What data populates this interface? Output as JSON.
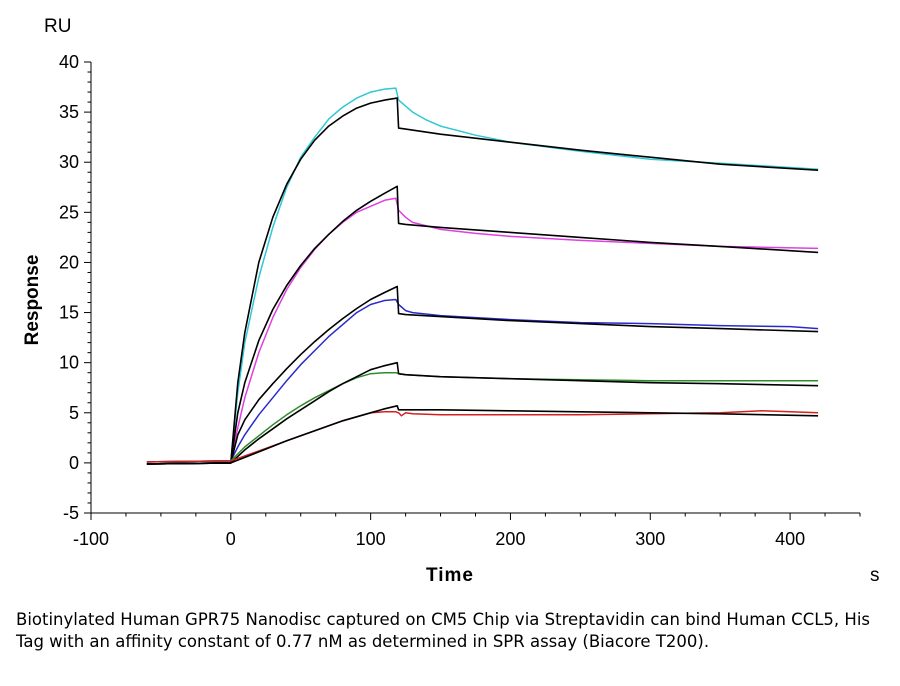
{
  "chart_data": {
    "type": "line",
    "xlabel": "Time",
    "ylabel": "Response",
    "y_unit": "RU",
    "x_unit": "s",
    "xlim": [
      -100,
      450
    ],
    "ylim": [
      -5,
      40
    ],
    "x_ticks": [
      -100,
      0,
      100,
      200,
      300,
      400
    ],
    "y_ticks": [
      -5,
      0,
      5,
      10,
      15,
      20,
      25,
      30,
      35,
      40
    ],
    "grid": false,
    "legend": "none",
    "series": [
      {
        "color": "#2ec8d6",
        "x": [
          -60,
          0,
          5,
          10,
          20,
          30,
          40,
          50,
          60,
          70,
          80,
          90,
          100,
          110,
          118,
          120,
          125,
          130,
          140,
          150,
          175,
          200,
          250,
          300,
          350,
          420
        ],
        "y": [
          0.1,
          0.2,
          7,
          12,
          18.5,
          23.5,
          27.5,
          30.5,
          32.5,
          34.3,
          35.5,
          36.4,
          37.0,
          37.3,
          37.4,
          36.2,
          35.6,
          35.0,
          34.2,
          33.6,
          32.7,
          32.0,
          31.1,
          30.3,
          29.9,
          29.3
        ]
      },
      {
        "color": "#000000",
        "x": [
          -60,
          0,
          5,
          10,
          20,
          30,
          40,
          50,
          60,
          70,
          80,
          90,
          100,
          110,
          119,
          120,
          125,
          150,
          200,
          250,
          300,
          350,
          420
        ],
        "y": [
          -0.1,
          0.0,
          8,
          13,
          20,
          24.5,
          27.8,
          30.3,
          32.2,
          33.6,
          34.6,
          35.4,
          35.9,
          36.2,
          36.4,
          33.4,
          33.3,
          32.8,
          32.0,
          31.2,
          30.5,
          29.8,
          29.2
        ]
      },
      {
        "color": "#e040e0",
        "x": [
          -60,
          0,
          5,
          10,
          20,
          30,
          40,
          50,
          60,
          70,
          80,
          90,
          100,
          110,
          118,
          120,
          125,
          130,
          150,
          175,
          200,
          250,
          300,
          350,
          420
        ],
        "y": [
          0.1,
          0.2,
          3.5,
          6.5,
          11,
          14.5,
          17.3,
          19.5,
          21.3,
          22.8,
          24,
          25,
          25.6,
          26.2,
          26.4,
          25.2,
          24.5,
          24,
          23.3,
          22.9,
          22.6,
          22.2,
          21.9,
          21.6,
          21.4
        ]
      },
      {
        "color": "#000000",
        "x": [
          -60,
          0,
          5,
          10,
          20,
          30,
          40,
          50,
          60,
          70,
          80,
          90,
          100,
          110,
          119,
          120,
          125,
          150,
          200,
          250,
          300,
          350,
          420
        ],
        "y": [
          -0.1,
          0.0,
          5,
          8,
          12.2,
          15.3,
          17.7,
          19.7,
          21.4,
          22.8,
          24.1,
          25.2,
          26.1,
          26.9,
          27.6,
          23.9,
          23.8,
          23.5,
          23.0,
          22.5,
          22.0,
          21.6,
          21.0
        ]
      },
      {
        "color": "#2a2acc",
        "x": [
          -60,
          0,
          5,
          10,
          20,
          30,
          40,
          50,
          60,
          70,
          80,
          90,
          100,
          110,
          118,
          120,
          125,
          130,
          150,
          175,
          200,
          250,
          300,
          350,
          400,
          420
        ],
        "y": [
          0.1,
          0.2,
          1.6,
          2.8,
          4.8,
          6.5,
          8.2,
          9.8,
          11.2,
          12.6,
          13.8,
          15,
          15.8,
          16.2,
          16.3,
          15.8,
          15.2,
          15,
          14.7,
          14.5,
          14.3,
          14,
          13.9,
          13.7,
          13.6,
          13.4
        ]
      },
      {
        "color": "#000000",
        "x": [
          -60,
          0,
          5,
          10,
          20,
          30,
          40,
          50,
          60,
          70,
          80,
          90,
          100,
          110,
          119,
          120,
          125,
          150,
          200,
          250,
          300,
          350,
          420
        ],
        "y": [
          -0.1,
          0.0,
          2.8,
          4.3,
          6.3,
          7.9,
          9.4,
          10.8,
          12.1,
          13.3,
          14.4,
          15.4,
          16.3,
          17.0,
          17.6,
          14.9,
          14.8,
          14.6,
          14.2,
          13.9,
          13.6,
          13.4,
          13.1
        ]
      },
      {
        "color": "#2e8b2e",
        "x": [
          -60,
          0,
          10,
          20,
          30,
          40,
          50,
          60,
          70,
          80,
          90,
          100,
          110,
          118,
          120,
          125,
          150,
          200,
          250,
          300,
          350,
          420
        ],
        "y": [
          0.1,
          0.2,
          1.6,
          2.7,
          3.8,
          4.8,
          5.7,
          6.5,
          7.2,
          7.9,
          8.5,
          8.9,
          9.0,
          9.0,
          8.9,
          8.8,
          8.6,
          8.4,
          8.3,
          8.2,
          8.2,
          8.2
        ]
      },
      {
        "color": "#000000",
        "x": [
          -60,
          0,
          10,
          20,
          30,
          40,
          50,
          60,
          70,
          80,
          90,
          100,
          110,
          119,
          120,
          125,
          150,
          200,
          250,
          300,
          350,
          420
        ],
        "y": [
          -0.1,
          0.0,
          1.3,
          2.4,
          3.4,
          4.4,
          5.3,
          6.2,
          7.1,
          7.9,
          8.6,
          9.3,
          9.7,
          10.0,
          8.9,
          8.8,
          8.6,
          8.4,
          8.2,
          8.0,
          7.9,
          7.7
        ]
      },
      {
        "color": "#d42020",
        "x": [
          -60,
          0,
          20,
          40,
          60,
          80,
          100,
          110,
          118,
          120,
          122,
          125,
          130,
          150,
          200,
          250,
          300,
          350,
          380,
          420
        ],
        "y": [
          0.1,
          0.2,
          1.2,
          2.2,
          3.2,
          4.2,
          5.0,
          5.1,
          5.1,
          5.0,
          4.7,
          5.0,
          4.9,
          4.8,
          4.8,
          4.8,
          4.9,
          5.0,
          5.2,
          5.0
        ]
      },
      {
        "color": "#000000",
        "x": [
          -60,
          0,
          20,
          40,
          60,
          80,
          100,
          110,
          119,
          120,
          125,
          150,
          200,
          250,
          300,
          350,
          420
        ],
        "y": [
          -0.1,
          0.0,
          1.1,
          2.2,
          3.2,
          4.2,
          5.0,
          5.4,
          5.7,
          5.3,
          5.3,
          5.3,
          5.2,
          5.1,
          5.0,
          4.9,
          4.7
        ]
      }
    ]
  },
  "caption": {
    "text": "Biotinylated Human GPR75 Nanodisc captured on CM5 Chip via Streptavidin can bind Human CCL5, His Tag with an affinity constant of 0.77 nM as determined in SPR assay (Biacore T200)."
  }
}
